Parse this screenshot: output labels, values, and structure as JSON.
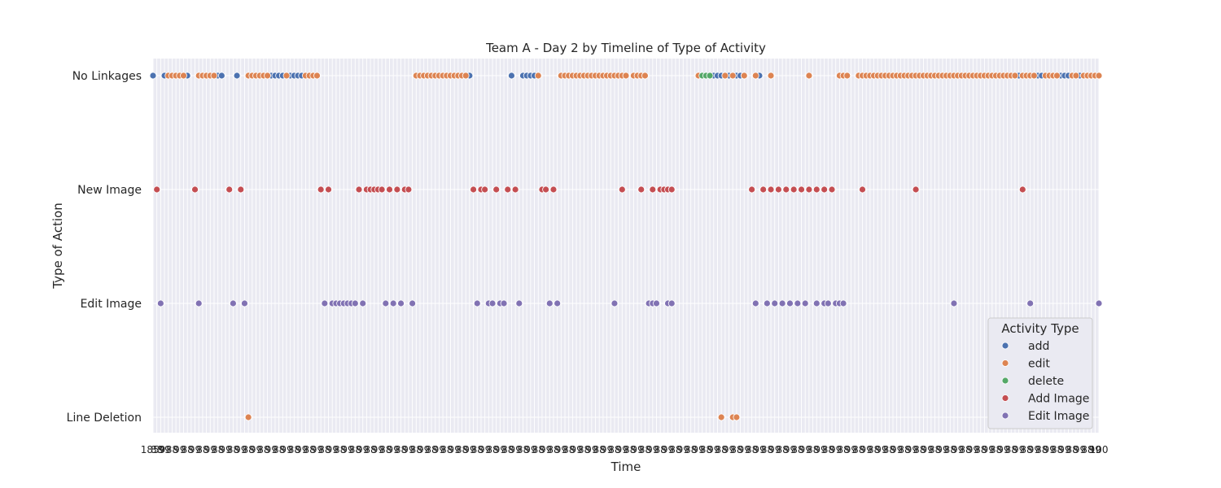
{
  "chart_data": {
    "type": "scatter",
    "title": "Team A - Day 2 by Timeline of Type of Activity",
    "xlabel": "Time",
    "ylabel": "Type of Action",
    "categories": [
      "No Linkages",
      "New Image",
      "Edit Image",
      "Line Deletion"
    ],
    "grid": true,
    "legend": {
      "title": "Activity Type",
      "placement": "lower-right",
      "entries": [
        {
          "name": "add",
          "color": "#4c72b0"
        },
        {
          "name": "edit",
          "color": "#dd8452"
        },
        {
          "name": "delete",
          "color": "#55a868"
        },
        {
          "name": "Add Image",
          "color": "#c44e52"
        },
        {
          "name": "Edit Image",
          "color": "#8172b3"
        }
      ]
    },
    "x_tick_label_first": "1859",
    "x_tick_label_last": "100",
    "x_index_range": [
      0,
      248
    ],
    "series": [
      {
        "name": "add",
        "category": "No Linkages",
        "x": [
          0,
          3,
          9,
          17,
          18,
          22,
          31,
          32,
          33,
          34,
          36,
          37,
          38,
          39,
          83,
          94,
          97,
          98,
          99,
          100,
          147,
          148,
          149,
          150,
          151,
          152,
          153,
          154,
          155,
          158,
          159,
          227,
          232,
          233,
          238,
          239,
          240,
          243
        ]
      },
      {
        "name": "edit",
        "category": "No Linkages",
        "x": [
          4,
          5,
          6,
          7,
          8,
          12,
          13,
          14,
          15,
          16,
          25,
          26,
          27,
          28,
          29,
          30,
          35,
          40,
          41,
          42,
          43,
          69,
          70,
          71,
          72,
          73,
          74,
          75,
          76,
          77,
          78,
          79,
          80,
          81,
          82,
          101,
          107,
          108,
          109,
          110,
          111,
          112,
          113,
          114,
          115,
          116,
          117,
          118,
          119,
          120,
          121,
          122,
          123,
          124,
          126,
          127,
          128,
          129,
          143,
          150,
          152,
          155,
          158,
          162,
          172,
          180,
          181,
          182,
          185,
          186,
          187,
          188,
          189,
          190,
          191,
          192,
          193,
          194,
          195,
          196,
          197,
          198,
          199,
          200,
          201,
          202,
          203,
          204,
          205,
          206,
          207,
          208,
          209,
          210,
          211,
          212,
          213,
          214,
          215,
          216,
          217,
          218,
          219,
          220,
          221,
          222,
          223,
          224,
          225,
          226,
          228,
          229,
          230,
          231,
          234,
          235,
          236,
          237,
          241,
          242,
          244,
          245,
          246,
          247,
          248
        ]
      },
      {
        "name": "delete",
        "category": "No Linkages",
        "x": [
          144,
          145,
          146
        ]
      },
      {
        "name": "edit",
        "category": "Line Deletion",
        "x": [
          25,
          149,
          152,
          153
        ]
      },
      {
        "name": "Add Image",
        "category": "New Image",
        "x": [
          1,
          11,
          20,
          23,
          44,
          46,
          54,
          56,
          57,
          58,
          59,
          60,
          62,
          64,
          66,
          67,
          84,
          86,
          87,
          90,
          93,
          95,
          102,
          103,
          105,
          123,
          128,
          131,
          133,
          134,
          135,
          136,
          157,
          160,
          162,
          164,
          166,
          168,
          170,
          172,
          174,
          176,
          178,
          186,
          200,
          228
        ]
      },
      {
        "name": "Edit Image",
        "category": "Edit Image",
        "x": [
          2,
          12,
          21,
          24,
          45,
          47,
          48,
          49,
          50,
          51,
          52,
          53,
          55,
          61,
          63,
          65,
          68,
          85,
          88,
          89,
          91,
          92,
          96,
          104,
          106,
          121,
          130,
          131,
          132,
          135,
          136,
          158,
          161,
          163,
          165,
          167,
          169,
          171,
          174,
          176,
          177,
          179,
          180,
          181,
          210,
          230,
          248
        ]
      }
    ]
  }
}
